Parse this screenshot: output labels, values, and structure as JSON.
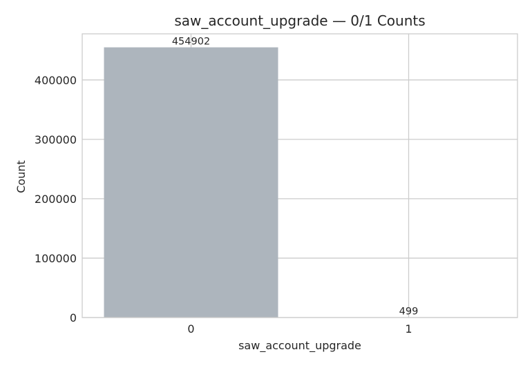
{
  "chart_data": {
    "type": "bar",
    "title": "saw_account_upgrade — 0/1 Counts",
    "xlabel": "saw_account_upgrade",
    "ylabel": "Count",
    "categories": [
      "0",
      "1"
    ],
    "values": [
      454902,
      499
    ],
    "data_labels": [
      "454902",
      "499"
    ],
    "yticks": [
      0,
      100000,
      200000,
      300000,
      400000
    ],
    "ytick_labels": [
      "0",
      "100000",
      "200000",
      "300000",
      "400000"
    ],
    "ylim": [
      0,
      477647
    ],
    "grid": true,
    "legend": "none",
    "bar_color": "#adb5bd",
    "grid_color": "#cccccc",
    "text_color": "#262626"
  }
}
